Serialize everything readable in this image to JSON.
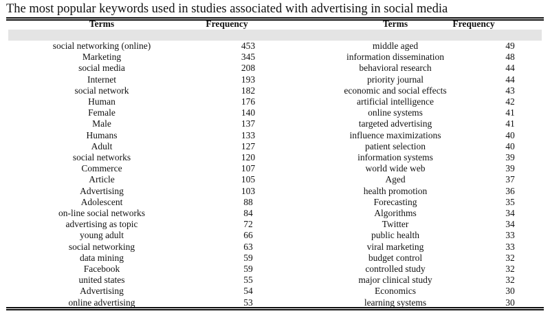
{
  "title": "The most popular keywords used in studies associated with advertising in social media",
  "headers": {
    "left_terms": "Terms",
    "left_frequency": "Frequency",
    "right_terms": "Terms",
    "right_frequency": "Frequency"
  },
  "rows": [
    {
      "term1": "social networking (online)",
      "freq1": "453",
      "term2": "middle aged",
      "freq2": "49"
    },
    {
      "term1": "Marketing",
      "freq1": "345",
      "term2": "information dissemination",
      "freq2": "48"
    },
    {
      "term1": "social media",
      "freq1": "208",
      "term2": "behavioral research",
      "freq2": "44"
    },
    {
      "term1": "Internet",
      "freq1": "193",
      "term2": "priority journal",
      "freq2": "44"
    },
    {
      "term1": "social network",
      "freq1": "182",
      "term2": "economic and social effects",
      "freq2": "43"
    },
    {
      "term1": "Human",
      "freq1": "176",
      "term2": "artificial intelligence",
      "freq2": "42"
    },
    {
      "term1": "Female",
      "freq1": "140",
      "term2": "online systems",
      "freq2": "41"
    },
    {
      "term1": "Male",
      "freq1": "137",
      "term2": "targeted advertising",
      "freq2": "41"
    },
    {
      "term1": "Humans",
      "freq1": "133",
      "term2": "influence maximizations",
      "freq2": "40"
    },
    {
      "term1": "Adult",
      "freq1": "127",
      "term2": "patient selection",
      "freq2": "40"
    },
    {
      "term1": "social networks",
      "freq1": "120",
      "term2": "information systems",
      "freq2": "39"
    },
    {
      "term1": "Commerce",
      "freq1": "107",
      "term2": "world wide web",
      "freq2": "39"
    },
    {
      "term1": "Article",
      "freq1": "105",
      "term2": "Aged",
      "freq2": "37"
    },
    {
      "term1": "Advertising",
      "freq1": "103",
      "term2": "health promotion",
      "freq2": "36"
    },
    {
      "term1": "Adolescent",
      "freq1": "88",
      "term2": "Forecasting",
      "freq2": "35"
    },
    {
      "term1": "on-line social networks",
      "freq1": "84",
      "term2": "Algorithms",
      "freq2": "34"
    },
    {
      "term1": "advertising as topic",
      "freq1": "72",
      "term2": "Twitter",
      "freq2": "34"
    },
    {
      "term1": "young adult",
      "freq1": "66",
      "term2": "public health",
      "freq2": "33"
    },
    {
      "term1": "social networking",
      "freq1": "63",
      "term2": "viral marketing",
      "freq2": "33"
    },
    {
      "term1": "data mining",
      "freq1": "59",
      "term2": "budget control",
      "freq2": "32"
    },
    {
      "term1": "Facebook",
      "freq1": "59",
      "term2": "controlled study",
      "freq2": "32"
    },
    {
      "term1": "united states",
      "freq1": "55",
      "term2": "major clinical study",
      "freq2": "32"
    },
    {
      "term1": "Advertising",
      "freq1": "54",
      "term2": "Economics",
      "freq2": "30"
    },
    {
      "term1": "online advertising",
      "freq1": "53",
      "term2": "learning systems",
      "freq2": "30"
    }
  ]
}
